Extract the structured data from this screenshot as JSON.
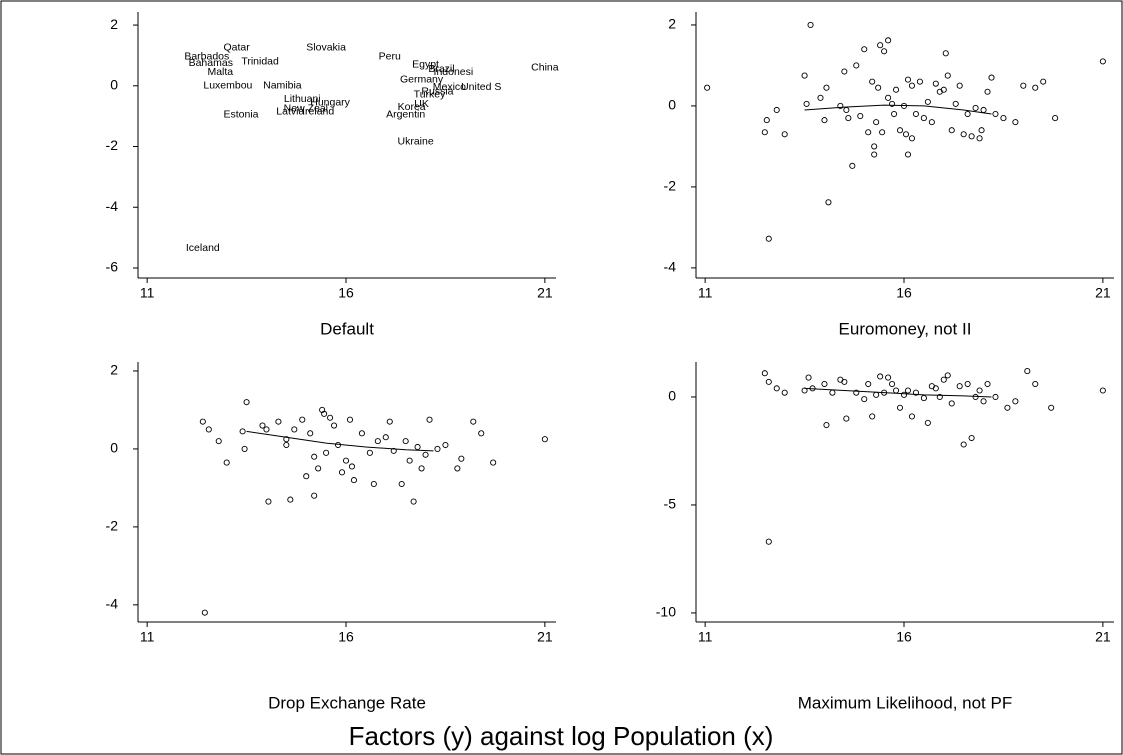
{
  "figure_title": "Factors (y) against log Population (x)",
  "chart_data": [
    {
      "type": "labeled-scatter",
      "title": "Default",
      "x": [
        12.5,
        13.25,
        12.6,
        12.84,
        13.03,
        13.84,
        14.4,
        17.1,
        18.0,
        18.4,
        18.7,
        21.0,
        19.4,
        18.6,
        18.3,
        18.1,
        17.9,
        17.65,
        17.9,
        17.5,
        17.75,
        13.36,
        14.6,
        14.99,
        15.3,
        14.9,
        15.6,
        15.5,
        12.4
      ],
      "y": [
        0.95,
        1.25,
        0.75,
        0.45,
        0.0,
        0.8,
        0.0,
        0.95,
        0.7,
        0.55,
        0.45,
        0.6,
        -0.05,
        -0.05,
        -0.2,
        -0.3,
        0.2,
        -0.7,
        -0.6,
        -0.95,
        -1.85,
        -0.95,
        -0.85,
        -0.75,
        -0.85,
        -0.45,
        -0.55,
        1.25,
        -5.35
      ],
      "labels": [
        "Barbados",
        "Qatar",
        "Bahamas",
        "Malta",
        "Luxembou",
        "Trinidad",
        "Namibia",
        "Peru",
        "Egypt",
        "Brazil",
        "Indonesi",
        "China",
        "United S",
        "Mexico",
        "Russia",
        "Turkey",
        "Germany",
        "Korea",
        "UK",
        "Argentin",
        "Ukraine",
        "Estonia",
        "Latvia",
        "New Zeal",
        "Ireland",
        "Lithuani",
        "Hungary",
        "Slovakia",
        "Iceland"
      ],
      "xlim": [
        10.77,
        21.28
      ],
      "xticks": [
        11,
        16,
        21
      ],
      "ylim": [
        -6.33,
        2.43
      ],
      "yticks": [
        2,
        0,
        -2,
        -4,
        -6
      ]
    },
    {
      "type": "scatter",
      "title": "Euromoney, not II",
      "x": [
        11.05,
        12.5,
        12.55,
        12.6,
        12.8,
        13.0,
        13.5,
        13.55,
        13.65,
        13.9,
        14.0,
        14.05,
        14.1,
        14.4,
        14.5,
        14.55,
        14.6,
        14.7,
        14.8,
        14.9,
        15.0,
        15.1,
        15.2,
        15.25,
        15.25,
        15.3,
        15.35,
        15.4,
        15.45,
        15.5,
        15.6,
        15.6,
        15.7,
        15.75,
        15.8,
        15.9,
        16.0,
        16.05,
        16.1,
        16.1,
        16.2,
        16.2,
        16.3,
        16.4,
        16.5,
        16.6,
        16.7,
        16.8,
        16.9,
        17.0,
        17.05,
        17.1,
        17.2,
        17.3,
        17.4,
        17.5,
        17.6,
        17.7,
        17.8,
        17.9,
        17.95,
        18.0,
        18.1,
        18.2,
        18.3,
        18.5,
        18.8,
        19.0,
        19.3,
        19.5,
        19.8,
        21.0
      ],
      "y": [
        0.45,
        -0.65,
        -0.35,
        -3.28,
        -0.1,
        -0.7,
        0.75,
        0.05,
        2.0,
        0.2,
        -0.35,
        0.45,
        -2.38,
        0.0,
        0.85,
        -0.1,
        -0.3,
        -1.48,
        1.0,
        -0.25,
        1.4,
        -0.65,
        0.6,
        -1.0,
        -1.2,
        -0.4,
        0.45,
        1.5,
        -0.65,
        1.35,
        1.62,
        0.2,
        0.05,
        -0.2,
        0.4,
        -0.6,
        0.0,
        -0.7,
        0.65,
        -1.2,
        -0.8,
        0.5,
        -0.2,
        0.6,
        -0.3,
        0.1,
        -0.4,
        0.55,
        0.35,
        0.4,
        1.3,
        0.75,
        -0.6,
        0.05,
        0.5,
        -0.7,
        -0.2,
        -0.75,
        -0.05,
        -0.8,
        -0.6,
        -0.1,
        0.35,
        0.7,
        -0.2,
        -0.3,
        -0.4,
        0.5,
        0.45,
        0.6,
        -0.3,
        1.1
      ],
      "fit": {
        "x": [
          13.5,
          14.5,
          15.5,
          16.5,
          17.5,
          18.2
        ],
        "y": [
          -0.1,
          -0.03,
          0.02,
          0.0,
          -0.1,
          -0.2
        ]
      },
      "xlim": [
        10.77,
        21.28
      ],
      "xticks": [
        11,
        16,
        21
      ],
      "ylim": [
        -4.25,
        2.32
      ],
      "yticks": [
        2,
        0,
        -2,
        -4
      ]
    },
    {
      "type": "scatter",
      "title": "Drop Exchange Rate",
      "x": [
        12.4,
        12.45,
        12.55,
        12.8,
        13.0,
        13.4,
        13.45,
        13.5,
        13.9,
        14.0,
        14.05,
        14.3,
        14.5,
        14.5,
        14.6,
        14.7,
        14.9,
        15.0,
        15.1,
        15.2,
        15.2,
        15.3,
        15.4,
        15.45,
        15.5,
        15.6,
        15.7,
        15.8,
        15.9,
        16.0,
        16.1,
        16.15,
        16.2,
        16.4,
        16.6,
        16.7,
        16.8,
        17.0,
        17.1,
        17.2,
        17.4,
        17.5,
        17.6,
        17.7,
        17.8,
        17.9,
        18.0,
        18.1,
        18.3,
        18.5,
        18.8,
        18.9,
        19.2,
        19.4,
        19.7,
        21.0
      ],
      "y": [
        0.7,
        -4.2,
        0.5,
        0.2,
        -0.35,
        0.45,
        0.0,
        1.2,
        0.6,
        0.5,
        -1.35,
        0.7,
        0.1,
        0.25,
        -1.3,
        0.5,
        0.75,
        -0.7,
        0.4,
        -1.2,
        -0.2,
        -0.5,
        1.0,
        0.9,
        -0.1,
        0.8,
        0.6,
        0.1,
        -0.6,
        -0.3,
        0.75,
        -0.45,
        -0.8,
        0.4,
        -0.1,
        -0.9,
        0.2,
        0.3,
        0.7,
        -0.05,
        -0.9,
        0.2,
        -0.3,
        -1.35,
        0.05,
        -0.5,
        -0.15,
        0.75,
        0.0,
        0.1,
        -0.5,
        -0.25,
        0.7,
        0.4,
        -0.35,
        0.25
      ],
      "fit": {
        "x": [
          13.5,
          14.5,
          15.5,
          16.5,
          17.5,
          18.2
        ],
        "y": [
          0.45,
          0.3,
          0.15,
          0.05,
          -0.02,
          -0.05
        ]
      },
      "xlim": [
        10.77,
        21.28
      ],
      "xticks": [
        11,
        16,
        21
      ],
      "ylim": [
        -4.44,
        2.23
      ],
      "yticks": [
        2,
        0,
        -2,
        -4
      ]
    },
    {
      "type": "scatter",
      "title": "Maximum Likelihood, not PF",
      "x": [
        12.5,
        12.6,
        12.6,
        12.8,
        13.0,
        13.5,
        13.6,
        13.7,
        14.0,
        14.05,
        14.2,
        14.4,
        14.5,
        14.55,
        14.8,
        15.0,
        15.1,
        15.2,
        15.3,
        15.4,
        15.5,
        15.6,
        15.7,
        15.8,
        15.9,
        16.0,
        16.1,
        16.2,
        16.3,
        16.5,
        16.6,
        16.7,
        16.8,
        16.9,
        17.0,
        17.1,
        17.2,
        17.4,
        17.5,
        17.6,
        17.7,
        17.8,
        17.9,
        18.0,
        18.1,
        18.3,
        18.6,
        18.8,
        19.1,
        19.3,
        19.7,
        21.0
      ],
      "y": [
        1.1,
        0.7,
        -6.7,
        0.4,
        0.2,
        0.3,
        0.9,
        0.4,
        0.6,
        -1.3,
        0.2,
        0.8,
        0.7,
        -1.0,
        0.2,
        -0.1,
        0.6,
        -0.9,
        0.1,
        0.95,
        0.2,
        0.9,
        0.6,
        0.3,
        -0.5,
        0.1,
        0.3,
        -0.9,
        0.2,
        -0.05,
        -1.2,
        0.5,
        0.4,
        0.0,
        0.8,
        1.0,
        -0.3,
        0.5,
        -2.2,
        0.6,
        -1.9,
        0.0,
        0.3,
        -0.2,
        0.6,
        0.0,
        -0.5,
        -0.2,
        1.2,
        0.6,
        -0.5,
        0.3
      ],
      "fit": {
        "x": [
          13.5,
          14.5,
          15.5,
          16.5,
          17.5,
          18.2
        ],
        "y": [
          0.4,
          0.3,
          0.2,
          0.1,
          0.05,
          0.0
        ]
      },
      "xlim": [
        10.77,
        21.28
      ],
      "xticks": [
        11,
        16,
        21
      ],
      "ylim": [
        -10.42,
        1.62
      ],
      "yticks": [
        0,
        -5,
        -10
      ]
    }
  ]
}
